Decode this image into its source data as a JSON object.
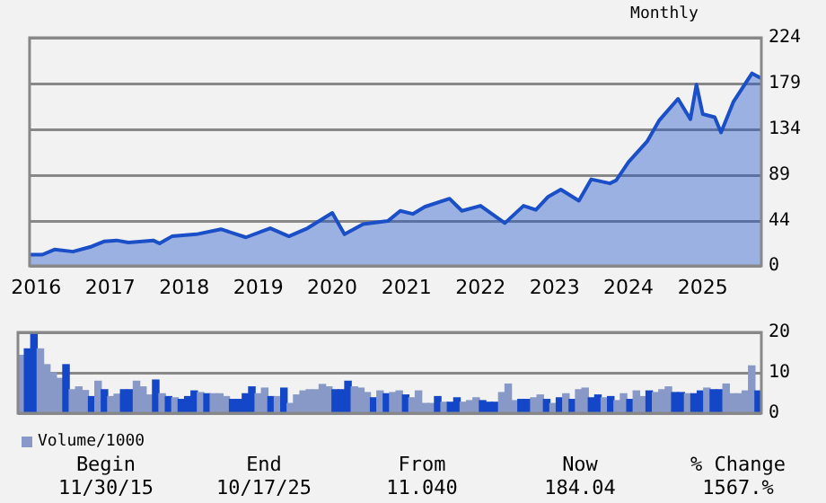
{
  "chart_data": [
    {
      "type": "area",
      "subtitle": "Monthly",
      "x": [
        "2015-11-30",
        "2016-02",
        "2016-04",
        "2016-07",
        "2016-10",
        "2016-12",
        "2017-02",
        "2017-04",
        "2017-08",
        "2017-09",
        "2017-11",
        "2018-03",
        "2018-07",
        "2018-11",
        "2019-03",
        "2019-06",
        "2019-09",
        "2020-01",
        "2020-03",
        "2020-06",
        "2020-10",
        "2020-12",
        "2021-02",
        "2021-04",
        "2021-08",
        "2021-10",
        "2022-01",
        "2022-05",
        "2022-08",
        "2022-10",
        "2022-12",
        "2023-02",
        "2023-05",
        "2023-07",
        "2023-10",
        "2023-11",
        "2024-01",
        "2024-04",
        "2024-06",
        "2024-09",
        "2024-11",
        "2024-12",
        "2025-01",
        "2025-03",
        "2025-04",
        "2025-06",
        "2025-09",
        "2025-10-17"
      ],
      "series": [
        {
          "color": "#1a4fc8",
          "values": [
            11,
            11,
            16,
            14,
            19,
            24,
            25,
            23,
            25,
            22,
            29,
            31,
            36,
            28,
            37,
            29,
            37,
            52,
            31,
            41,
            44,
            54,
            51,
            58,
            66,
            54,
            59,
            42,
            59,
            55,
            68,
            75,
            64,
            85,
            81,
            84,
            102,
            122,
            143,
            164,
            144,
            178,
            149,
            146,
            131,
            161,
            189,
            184
          ]
        }
      ],
      "xlim": [
        "2015-11-30",
        "2025-10-17"
      ],
      "xticks": [
        {
          "value": "2016-01",
          "label": "2016"
        },
        {
          "value": "2017-01",
          "label": "2017"
        },
        {
          "value": "2018-01",
          "label": "2018"
        },
        {
          "value": "2019-01",
          "label": "2019"
        },
        {
          "value": "2020-01",
          "label": "2020"
        },
        {
          "value": "2021-01",
          "label": "2021"
        },
        {
          "value": "2022-01",
          "label": "2022"
        },
        {
          "value": "2023-01",
          "label": "2023"
        },
        {
          "value": "2024-01",
          "label": "2024"
        },
        {
          "value": "2025-01",
          "label": "2025"
        }
      ],
      "ylim": [
        0,
        224
      ],
      "yticks": [
        0,
        44,
        89,
        134,
        179,
        224
      ],
      "grid": "y",
      "legend": false
    },
    {
      "type": "bar",
      "categories": [
        null,
        null,
        null,
        null,
        null,
        null,
        null,
        null,
        null,
        null,
        null,
        null,
        null,
        null,
        null,
        null,
        null,
        null,
        null,
        null,
        null,
        null,
        null,
        null,
        null,
        null,
        null,
        null,
        null,
        null,
        null,
        null,
        null,
        null,
        null,
        null,
        null,
        null,
        null,
        null,
        null,
        null,
        null,
        null,
        null,
        null,
        null,
        null,
        null,
        null,
        null,
        null,
        null,
        null,
        null,
        null,
        null,
        null,
        null,
        null,
        null,
        null,
        null,
        null,
        null,
        null,
        null,
        null,
        null,
        null,
        null,
        null,
        null,
        null,
        null,
        null,
        null,
        null,
        null,
        null,
        null,
        null,
        null,
        null,
        null,
        null,
        null,
        null,
        null,
        null,
        null,
        null,
        null,
        null,
        null,
        null,
        null,
        null,
        null,
        null,
        null,
        null,
        null,
        null,
        null,
        null,
        null,
        null,
        null,
        null,
        null,
        null,
        null,
        null,
        null,
        null
      ],
      "series": [
        {
          "name": "Volume/1000",
          "color": "#8899c8",
          "colors": [
            "#8899c8",
            "#1446c8",
            "#1446c8",
            "#8899c8",
            "#8899c8",
            "#8899c8",
            "#8899c8",
            "#1446c8",
            "#8899c8",
            "#8899c8",
            "#8899c8",
            "#1446c8",
            "#8899c8",
            "#1446c8",
            "#8899c8",
            "#8899c8",
            "#1446c8",
            "#1446c8",
            "#8899c8",
            "#8899c8",
            "#8899c8",
            "#1446c8",
            "#8899c8",
            "#1446c8",
            "#8899c8",
            "#1446c8",
            "#1446c8",
            "#1446c8",
            "#8899c8",
            "#1446c8",
            "#8899c8",
            "#8899c8",
            "#8899c8",
            "#1446c8",
            "#1446c8",
            "#1446c8",
            "#1446c8",
            "#8899c8",
            "#8899c8",
            "#1446c8",
            "#8899c8",
            "#1446c8",
            "#8899c8",
            "#8899c8",
            "#8899c8",
            "#8899c8",
            "#8899c8",
            "#8899c8",
            "#8899c8",
            "#1446c8",
            "#1446c8",
            "#1446c8",
            "#8899c8",
            "#8899c8",
            "#8899c8",
            "#1446c8",
            "#8899c8",
            "#1446c8",
            "#8899c8",
            "#8899c8",
            "#1446c8",
            "#8899c8",
            "#8899c8",
            "#8899c8",
            "#8899c8",
            "#1446c8",
            "#8899c8",
            "#1446c8",
            "#1446c8",
            "#8899c8",
            "#8899c8",
            "#8899c8",
            "#1446c8",
            "#1446c8",
            "#1446c8",
            "#8899c8",
            "#8899c8",
            "#8899c8",
            "#1446c8",
            "#1446c8",
            "#8899c8",
            "#8899c8",
            "#1446c8",
            "#8899c8",
            "#1446c8",
            "#8899c8",
            "#1446c8",
            "#8899c8",
            "#8899c8",
            "#1446c8",
            "#1446c8",
            "#8899c8",
            "#1446c8",
            "#8899c8",
            "#8899c8",
            "#1446c8",
            "#8899c8",
            "#8899c8",
            "#1446c8",
            "#8899c8",
            "#8899c8",
            "#8899c8",
            "#1446c8",
            "#1446c8",
            "#8899c8",
            "#1446c8",
            "#1446c8",
            "#8899c8",
            "#1446c8",
            "#1446c8",
            "#8899c8",
            "#8899c8",
            "#8899c8",
            "#8899c8",
            "#8899c8",
            "#1446c8"
          ],
          "values": [
            14.3,
            15.9,
            19.5,
            15.9,
            12,
            10,
            8.6,
            12,
            5.8,
            6.5,
            5.6,
            4.1,
            7.9,
            5.8,
            4.1,
            4.7,
            5.8,
            5.8,
            7.9,
            6.5,
            4.5,
            8.2,
            4.8,
            4.1,
            3.8,
            3.4,
            4.1,
            5.5,
            5.1,
            4.8,
            4.8,
            4.8,
            4.1,
            3.4,
            3.4,
            4.8,
            6.5,
            4.8,
            6.2,
            4.1,
            4.1,
            6.2,
            2.4,
            4.5,
            5.5,
            5.8,
            5.8,
            7.1,
            6.5,
            5.8,
            5.8,
            7.9,
            6.5,
            6.2,
            5.1,
            3.8,
            5.5,
            4.8,
            5.1,
            5.5,
            4.5,
            3.8,
            5.5,
            2.4,
            2.4,
            4.1,
            2.7,
            2.7,
            3.8,
            2.7,
            3.1,
            3.8,
            3.1,
            2.7,
            2.7,
            5.1,
            7.2,
            3.1,
            3.4,
            3.4,
            3.8,
            4.5,
            3.4,
            2.4,
            3.8,
            4.8,
            3.4,
            5.8,
            6.2,
            3.8,
            4.5,
            3.8,
            4.1,
            3.1,
            4.8,
            3.4,
            5.5,
            4.1,
            5.5,
            5.1,
            5.8,
            6.5,
            5.1,
            5.1,
            4.8,
            4.8,
            5.5,
            6.2,
            5.8,
            5.8,
            7.2,
            4.8,
            4.8,
            5.5,
            11.7,
            5.5
          ]
        }
      ],
      "ylim": [
        0,
        20
      ],
      "yticks": [
        0,
        10,
        20
      ],
      "grid": "y",
      "legend": "bottom left",
      "annotations": [
        "Begin",
        "End",
        "From",
        "Now",
        "% Change",
        "11/30/15",
        "10/17/25",
        "11.040",
        "184.04",
        "1567.%"
      ]
    }
  ]
}
